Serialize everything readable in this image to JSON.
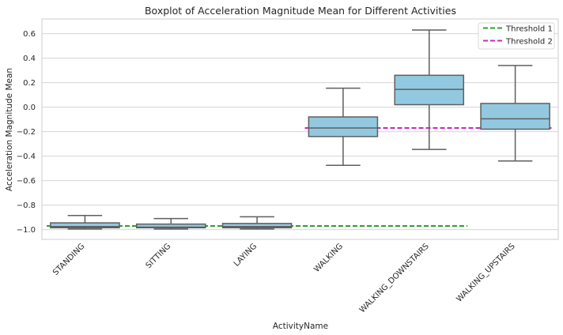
{
  "chart_data": {
    "type": "box",
    "title": "Boxplot of Acceleration Magnitude Mean for Different Activities",
    "xlabel": "ActivityName",
    "ylabel": "Acceleration Magnitude Mean",
    "ylim": [
      -1.08,
      0.72
    ],
    "yticks": [
      0.6,
      0.4,
      0.2,
      0.0,
      -0.2,
      -0.4,
      -0.6,
      -0.8,
      -1.0
    ],
    "ytick_labels": [
      "0.6",
      "0.4",
      "0.2",
      "0.0",
      "−0.2",
      "−0.4",
      "−0.6",
      "−0.8",
      "−1.0"
    ],
    "grid": "horizontal",
    "legend_position": "top-right",
    "box_color": "#92c9e0",
    "box_edge_color": "#5f5f5f",
    "categories": [
      "STANDING",
      "SITTING",
      "LAYING",
      "WALKING",
      "WALKING_DOWNSTAIRS",
      "WALKING_UPSTAIRS"
    ],
    "boxes": [
      {
        "whislo": -0.995,
        "q1": -0.985,
        "med": -0.975,
        "q3": -0.945,
        "whishi": -0.885
      },
      {
        "whislo": -0.995,
        "q1": -0.985,
        "med": -0.98,
        "q3": -0.955,
        "whishi": -0.91
      },
      {
        "whislo": -0.995,
        "q1": -0.985,
        "med": -0.975,
        "q3": -0.95,
        "whishi": -0.895
      },
      {
        "whislo": -0.475,
        "q1": -0.24,
        "med": -0.17,
        "q3": -0.08,
        "whishi": 0.155
      },
      {
        "whislo": -0.345,
        "q1": 0.02,
        "med": 0.145,
        "q3": 0.26,
        "whishi": 0.63
      },
      {
        "whislo": -0.44,
        "q1": -0.18,
        "med": -0.095,
        "q3": 0.03,
        "whishi": 0.34
      }
    ],
    "thresholds": [
      {
        "name": "Threshold 1",
        "value": -0.97,
        "color": "#2ca02c",
        "from_category": 0,
        "to_category": 5
      },
      {
        "name": "Threshold 2",
        "value": -0.17,
        "color": "#c728c7",
        "from_category": 3,
        "to_category": 6
      }
    ]
  }
}
